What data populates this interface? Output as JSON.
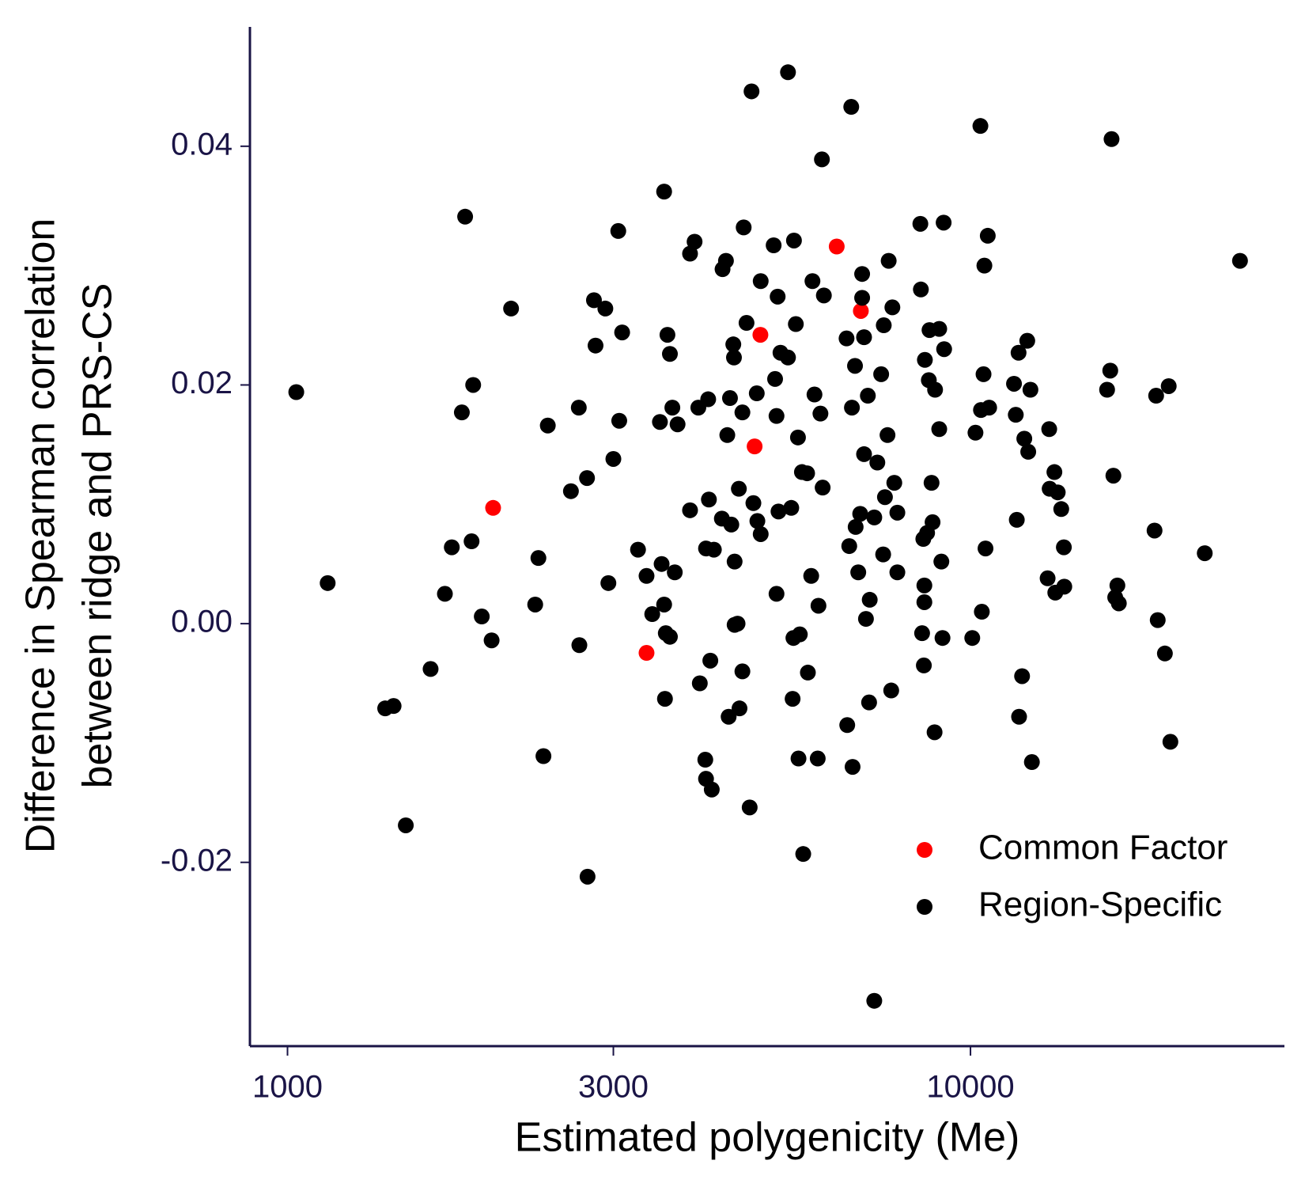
{
  "chart_data": {
    "type": "scatter",
    "x_label": "Estimated polygenicity (Me)",
    "y_label": [
      "Difference in Spearman correlation",
      "between ridge and PRS-CS"
    ],
    "xscale": "log",
    "xlim": [
      881,
      28820
    ],
    "ylim": [
      -0.0354,
      0.05
    ],
    "xticks": [
      1000,
      3000,
      10000
    ],
    "yticks": [
      -0.02,
      {
        "value": 0,
        "label": "0.00"
      },
      0.02,
      0.04
    ],
    "legend": "lower right",
    "series": [
      {
        "name": "Common Factor",
        "color": "#ff0000",
        "x": [
          6370,
          6910,
          4925,
          4830,
          2000,
          3355
        ],
        "values": [
          0.0316,
          0.0262,
          0.0242,
          0.01485,
          0.0097,
          -0.00245
        ]
      },
      {
        "name": "Region-Specific",
        "color": "#000000",
        "x": [
          1030,
          1145,
          1390,
          1430,
          1490,
          1620,
          1700,
          1740,
          1800,
          1820,
          1870,
          1860,
          1925,
          1990,
          2125,
          2305,
          2330,
          2370,
          2405,
          2600,
          2670,
          2675,
          2745,
          2750,
          2810,
          2825,
          2920,
          2950,
          3000,
          3050,
          3060,
          3090,
          3260,
          3355,
          3420,
          3510,
          3530,
          3560,
          3560,
          3570,
          3580,
          3600,
          3630,
          3630,
          3660,
          3690,
          3725,
          3885,
          3885,
          3945,
          3995,
          4015,
          4090,
          4100,
          4100,
          4130,
          4140,
          4160,
          4180,
          4210,
          4325,
          4335,
          4385,
          4405,
          4425,
          4445,
          4465,
          4495,
          4505,
          4515,
          4515,
          4560,
          4580,
          4590,
          4635,
          4635,
          4655,
          4700,
          4750,
          4780,
          4810,
          4865,
          4875,
          4930,
          4930,
          5150,
          5175,
          5200,
          5200,
          5220,
          5235,
          5270,
          5405,
          5405,
          5465,
          5490,
          5505,
          5515,
          5550,
          5590,
          5600,
          5625,
          5665,
          5690,
          5765,
          5780,
          5845,
          5870,
          5910,
          5975,
          5990,
          6030,
          6060,
          6075,
          6100,
          6585,
          6600,
          6645,
          6690,
          6705,
          6720,
          6775,
          6790,
          6850,
          6895,
          6940,
          6940,
          6985,
          6985,
          7030,
          7075,
          7105,
          7120,
          7230,
          7230,
          7305,
          7400,
          7450,
          7465,
          7495,
          7560,
          7590,
          7655,
          7685,
          7735,
          7815,
          8445,
          8460,
          8495,
          8545,
          8560,
          8575,
          8690,
          8710,
          8860,
          8875,
          9000,
          9000,
          9065,
          9100,
          9135,
          9150,
          10060,
          10170,
          10340,
          10360,
          10390,
          10450,
          10480,
          10520,
          10600,
          10650,
          11580,
          11650,
          11690,
          11760,
          11780,
          11900,
          11990,
          12110,
          12150,
          12240,
          12300,
          12970,
          13040,
          13060,
          13270,
          13310,
          13420,
          13580,
          13700,
          13720,
          15850,
          16020,
          16090,
          16190,
          16290,
          16410,
          16490,
          18600,
          18700,
          18800,
          19260,
          19510,
          19620,
          22030,
          24810,
          8770,
          7815,
          8530,
          8640,
          8800,
          8560
        ],
        "values": [
          0.0194,
          0.0034,
          -0.0071,
          -0.0069,
          -0.0169,
          -0.0038,
          0.0025,
          0.0064,
          0.0177,
          0.0341,
          0.02,
          0.0069,
          0.0006,
          -0.0014,
          0.0264,
          0.0016,
          0.0055,
          -0.0111,
          0.0166,
          0.0111,
          0.0181,
          -0.0018,
          0.0122,
          -0.0212,
          0.0271,
          0.0233,
          0.0264,
          0.0034,
          0.0138,
          0.0329,
          0.017,
          0.0244,
          0.0062,
          0.004,
          0.0008,
          0.0169,
          0.005,
          0.0016,
          0.0362,
          -0.0063,
          -0.0008,
          0.0242,
          0.0226,
          -0.0011,
          0.0181,
          0.0043,
          0.0167,
          0.031,
          0.0095,
          0.032,
          0.0181,
          -0.005,
          -0.0114,
          0.0063,
          -0.013,
          0.0188,
          0.0104,
          -0.0031,
          -0.0139,
          0.0062,
          0.0088,
          0.0297,
          0.0304,
          0.0158,
          -0.0078,
          0.0189,
          0.0083,
          0.0234,
          0.0223,
          0.0052,
          -0.0001,
          0,
          0.0113,
          -0.0071,
          -0.004,
          0.0177,
          0.0332,
          0.0252,
          -0.0154,
          0.0446,
          0.0101,
          0.0193,
          0.0086,
          0.0075,
          0.0287,
          0.0317,
          0.0205,
          0.0174,
          0.0025,
          0.0274,
          0.0094,
          0.0227,
          0.0462,
          0.0223,
          0.0097,
          -0.0063,
          -0.0012,
          0.0321,
          0.0251,
          0.0156,
          -0.0113,
          -0.0009,
          0.0127,
          -0.0193,
          0.0126,
          -0.0041,
          0.004,
          0.0287,
          0.0192,
          -0.0113,
          0.0015,
          0.0176,
          0.0389,
          0.0114,
          0.0275,
          0.0239,
          -0.0085,
          0.0065,
          0.0433,
          0.0181,
          -0.012,
          0.0216,
          0.0081,
          0.0043,
          0.0092,
          0.0293,
          0.0273,
          0.024,
          0.0142,
          0.0004,
          0.0191,
          -0.0066,
          0.002,
          0.0089,
          -0.0316,
          0.0135,
          0.0209,
          0.0058,
          0.025,
          0.0106,
          0.0158,
          0.0304,
          -0.0056,
          0.0265,
          0.0118,
          0.0043,
          0.0335,
          0.028,
          -0.0008,
          -0.0035,
          0.0018,
          0.0221,
          0.0204,
          0.0246,
          -0.0091,
          0.0196,
          0.0247,
          0.0163,
          0.0052,
          -0.0012,
          0.0336,
          0.023,
          -0.0012,
          0.016,
          0.0417,
          0.0179,
          0.001,
          0.0209,
          0.03,
          0.0063,
          0.0325,
          0.0181,
          0.0201,
          0.0175,
          0.0087,
          0.0227,
          -0.0078,
          -0.0044,
          0.0155,
          0.0237,
          0.0144,
          0.0196,
          -0.0116,
          0.0038,
          0.0163,
          0.0113,
          0.0127,
          0.0026,
          0.011,
          0.0096,
          0.0064,
          0.0031,
          0.0196,
          0.0212,
          0.0406,
          0.0124,
          0.0022,
          0.0032,
          0.0017,
          0.0078,
          0.0191,
          0.0003,
          -0.0025,
          0.0199,
          -0.0099,
          0.0059,
          0.0304,
          0.0118,
          0.0093,
          0.0071,
          0.0076,
          0.0085,
          0.0032
        ]
      }
    ]
  }
}
